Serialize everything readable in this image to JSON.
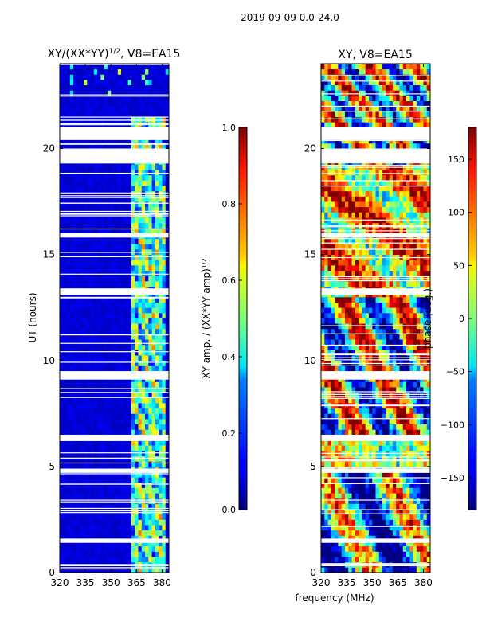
{
  "suptitle": "2019-09-09 0.0-24.0",
  "chart_data": [
    {
      "type": "heatmap",
      "title_main": "XY/(XX*YY)",
      "title_exp": "1/2",
      "title_tail": ", V8=EA15",
      "xlabel": "",
      "ylabel": "UT (hours)",
      "xlim": [
        320,
        384
      ],
      "ylim": [
        0,
        24
      ],
      "xticks": [
        320,
        335,
        350,
        365,
        380
      ],
      "yticks": [
        0,
        5,
        10,
        15,
        20
      ],
      "colorbar": {
        "label_main": "XY amp. / (XX*YY amp)",
        "label_exp": "1/2",
        "range": [
          0.0,
          1.0
        ],
        "ticks": [
          "0.0",
          "0.2",
          "0.4",
          "0.6",
          "0.8",
          "1.0"
        ],
        "tick_values": [
          0,
          0.2,
          0.4,
          0.6,
          0.8,
          1.0
        ],
        "colormap": "jet"
      },
      "blank_bands_ut": [
        [
          20.4,
          21.0
        ],
        [
          19.3,
          20.0
        ],
        [
          15.8,
          16.0
        ],
        [
          13.1,
          13.4
        ],
        [
          9.1,
          9.5
        ],
        [
          6.2,
          6.5
        ],
        [
          4.7,
          4.9
        ],
        [
          1.4,
          1.6
        ],
        [
          0.3,
          0.4
        ]
      ]
    },
    {
      "type": "heatmap",
      "title": "XY, V8=EA15",
      "xlabel": "frequency (MHz)",
      "ylabel": "",
      "xlim": [
        320,
        384
      ],
      "ylim": [
        0,
        24
      ],
      "xticks": [
        320,
        335,
        350,
        365,
        380
      ],
      "yticks": [
        0,
        5,
        10,
        15,
        20
      ],
      "colorbar": {
        "label": "phase (deg.)",
        "range": [
          -180,
          180
        ],
        "ticks": [
          "150",
          "100",
          "50",
          "0",
          "−50",
          "−100",
          "−150"
        ],
        "tick_values": [
          150,
          100,
          50,
          0,
          -50,
          -100,
          -150
        ],
        "colormap": "jet"
      },
      "blank_bands_ut": [
        [
          20.4,
          21.0
        ],
        [
          19.3,
          20.0
        ],
        [
          15.8,
          16.0
        ],
        [
          13.1,
          13.4
        ],
        [
          9.1,
          9.5
        ],
        [
          6.2,
          6.5
        ],
        [
          4.7,
          4.9
        ],
        [
          1.4,
          1.6
        ],
        [
          0.3,
          0.4
        ]
      ]
    }
  ]
}
